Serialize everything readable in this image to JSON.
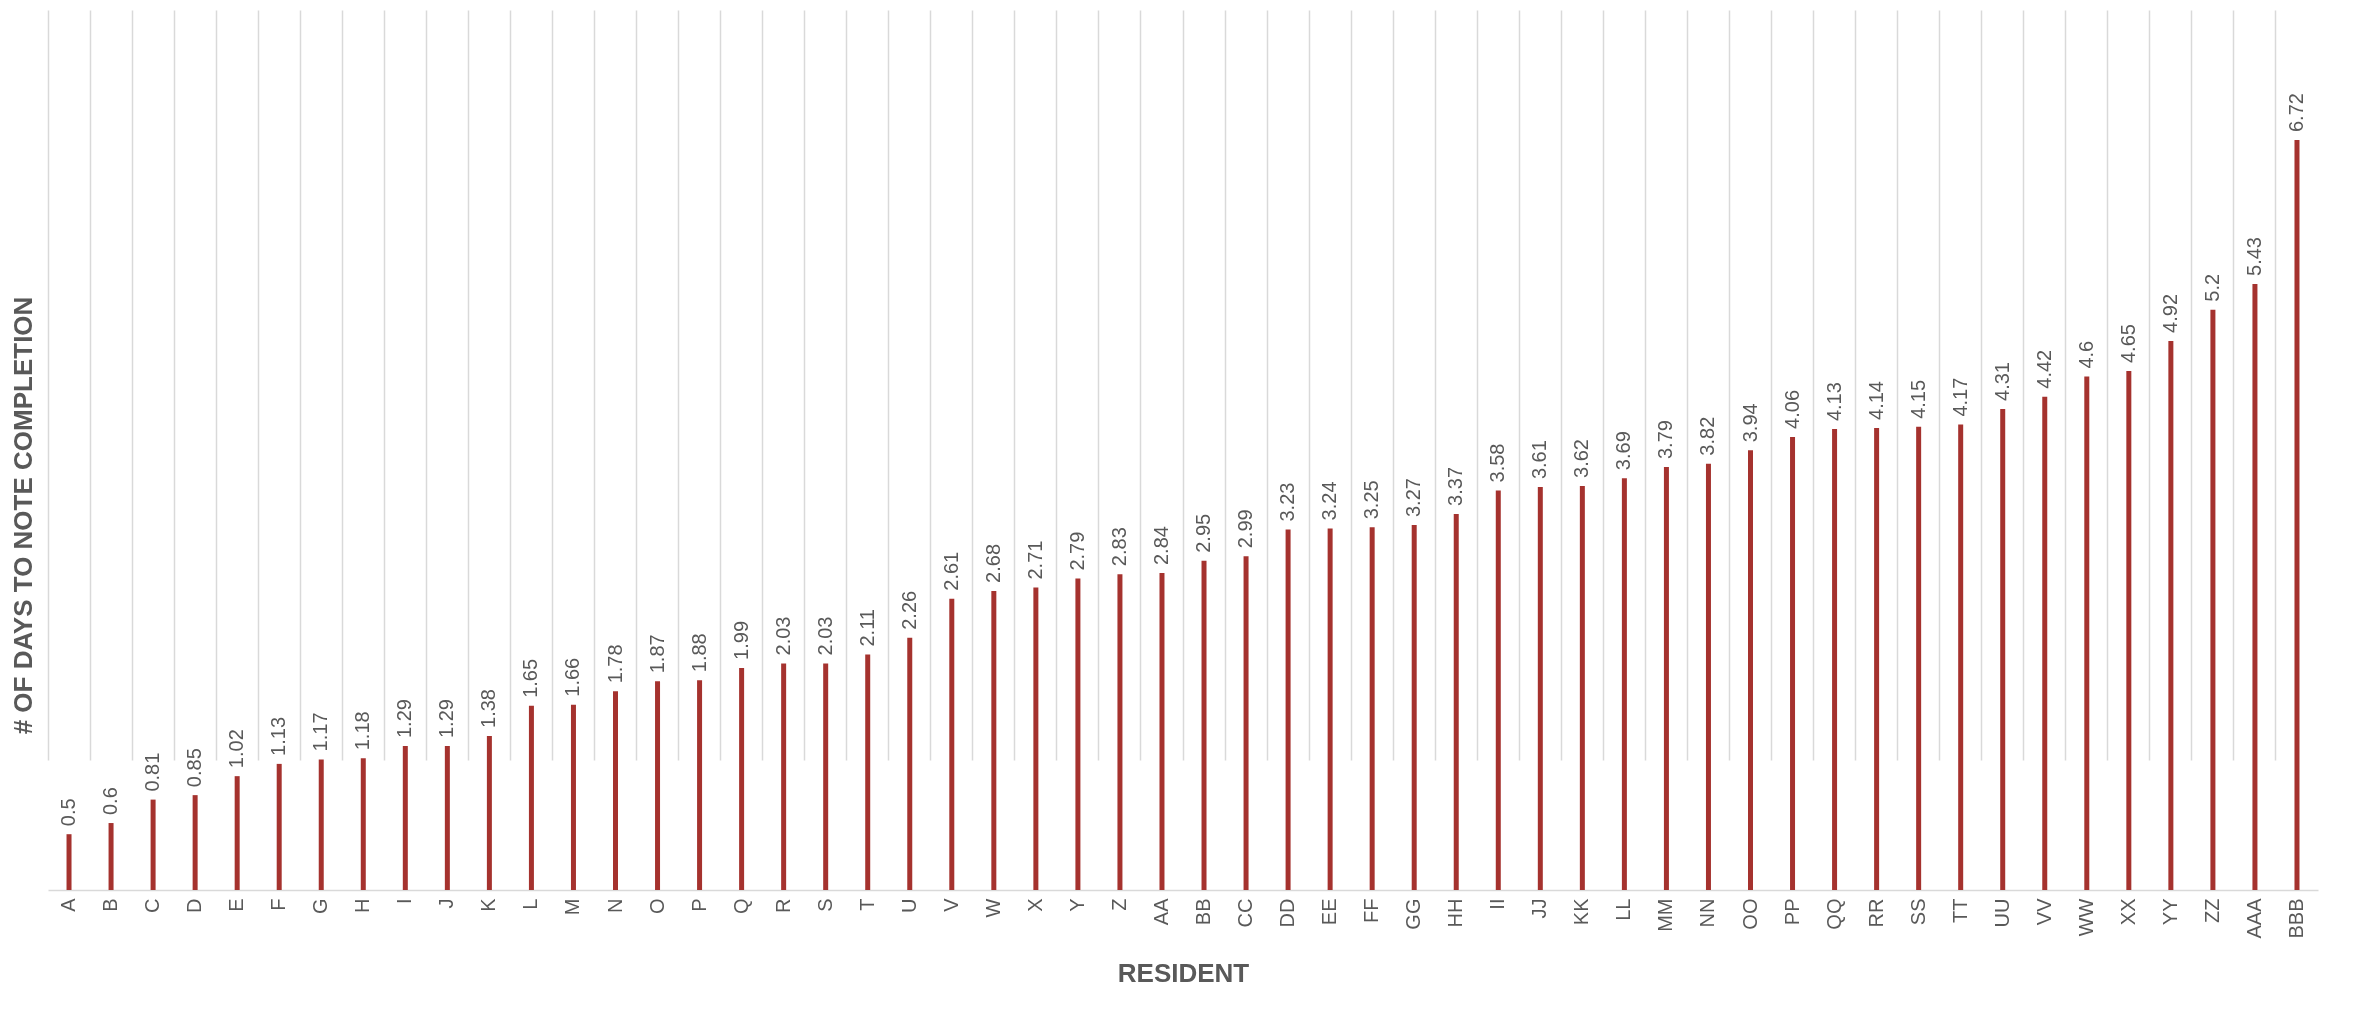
{
  "chart_data": {
    "type": "bar",
    "xlabel": "RESIDENT",
    "ylabel": "# OF DAYS TO NOTE COMPLETION",
    "categories": [
      "A",
      "B",
      "C",
      "D",
      "E",
      "F",
      "G",
      "H",
      "I",
      "J",
      "K",
      "L",
      "M",
      "N",
      "O",
      "P",
      "Q",
      "R",
      "S",
      "T",
      "U",
      "V",
      "W",
      "X",
      "Y",
      "Z",
      "AA",
      "BB",
      "CC",
      "DD",
      "EE",
      "FF",
      "GG",
      "HH",
      "II",
      "JJ",
      "KK",
      "LL",
      "MM",
      "NN",
      "OO",
      "PP",
      "QQ",
      "RR",
      "SS",
      "TT",
      "UU",
      "VV",
      "WW",
      "XX",
      "YY",
      "ZZ",
      "AAA",
      "BBB"
    ],
    "values": [
      0.5,
      0.6,
      0.81,
      0.85,
      1.02,
      1.13,
      1.17,
      1.18,
      1.29,
      1.29,
      1.38,
      1.65,
      1.66,
      1.78,
      1.87,
      1.88,
      1.99,
      2.03,
      2.03,
      2.11,
      2.26,
      2.61,
      2.68,
      2.71,
      2.79,
      2.83,
      2.84,
      2.95,
      2.99,
      3.23,
      3.24,
      3.25,
      3.27,
      3.37,
      3.58,
      3.61,
      3.62,
      3.69,
      3.79,
      3.82,
      3.94,
      4.06,
      4.13,
      4.14,
      4.15,
      4.17,
      4.31,
      4.42,
      4.6,
      4.65,
      4.92,
      5.2,
      5.43,
      6.72
    ],
    "color": "#a5322e",
    "data_labels": true,
    "grid": "x",
    "tick_labels": "x"
  }
}
